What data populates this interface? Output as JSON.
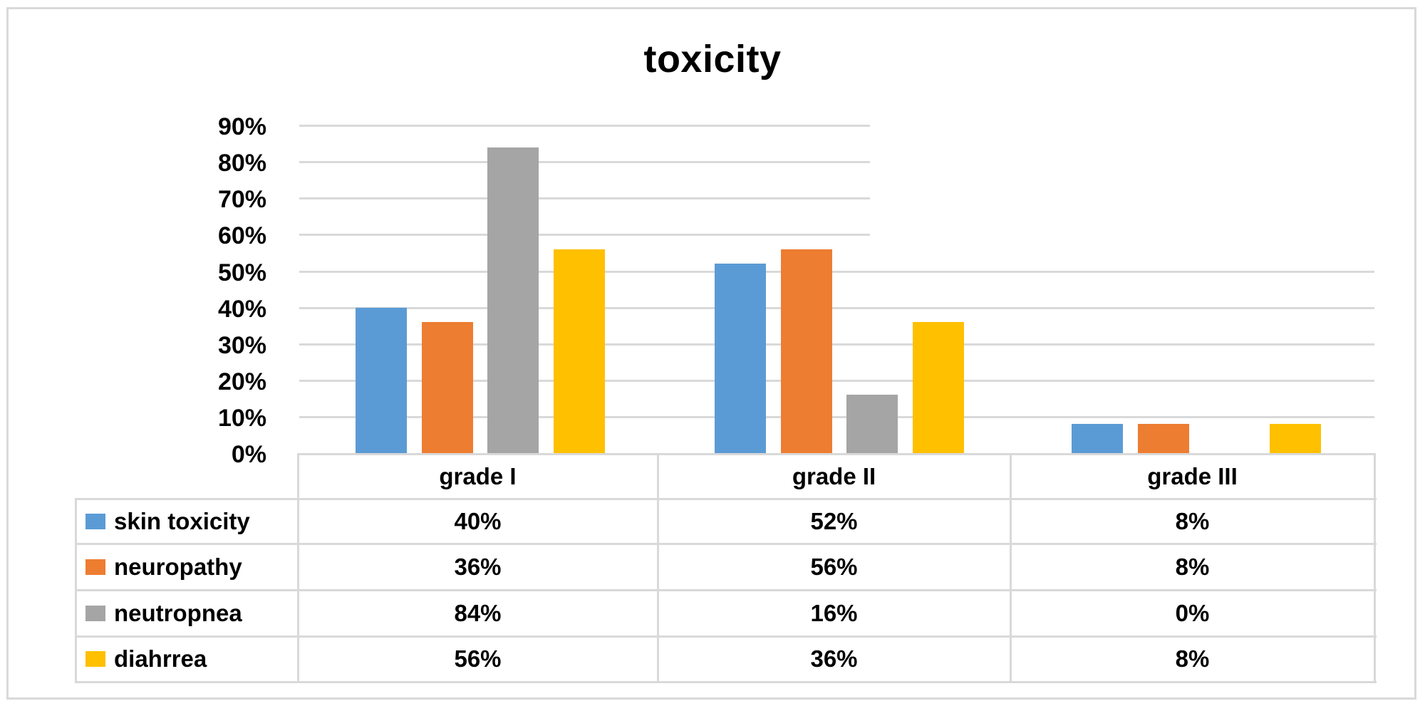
{
  "chart_data": {
    "type": "bar",
    "title": "toxicity",
    "xlabel": "",
    "ylabel": "",
    "ylim": [
      0,
      0.9
    ],
    "yticks": [
      "0%",
      "10%",
      "20%",
      "30%",
      "40%",
      "50%",
      "60%",
      "70%",
      "80%",
      "90%"
    ],
    "grid": true,
    "legend_position": "data-table",
    "categories": [
      "grade I",
      "grade II",
      "grade III"
    ],
    "series": [
      {
        "name": "skin toxicity",
        "color": "#5B9BD5",
        "values": [
          40,
          52,
          8
        ],
        "labels": [
          "40%",
          "52%",
          "8%"
        ]
      },
      {
        "name": "neuropathy",
        "color": "#ED7D31",
        "values": [
          36,
          56,
          8
        ],
        "labels": [
          "36%",
          "56%",
          "8%"
        ]
      },
      {
        "name": "neutropnea",
        "color": "#A5A5A5",
        "values": [
          84,
          16,
          0
        ],
        "labels": [
          "84%",
          "16%",
          "0%"
        ]
      },
      {
        "name": "diahrrea",
        "color": "#FFC000",
        "values": [
          56,
          36,
          8
        ],
        "labels": [
          "56%",
          "36%",
          "8%"
        ]
      }
    ]
  },
  "colors": {
    "gridline": "#D9D9D9",
    "border": "#D9D9D9"
  }
}
